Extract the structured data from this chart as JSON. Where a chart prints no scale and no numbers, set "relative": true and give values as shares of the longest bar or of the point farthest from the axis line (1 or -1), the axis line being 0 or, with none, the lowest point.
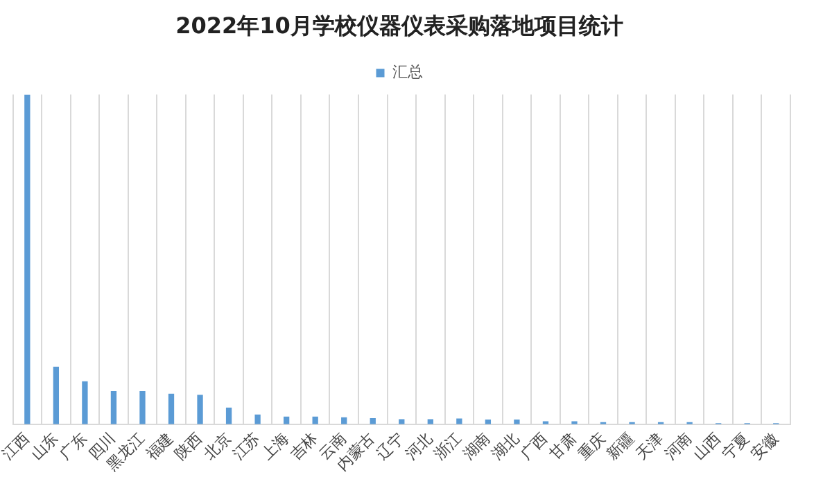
{
  "chart_data": {
    "type": "bar",
    "title": "2022年10月学校仪器仪表采购落地项目统计",
    "relative": true,
    "grid": "x",
    "legend": "top",
    "categories": [
      "江西",
      "山东",
      "广东",
      "四川",
      "黑龙江",
      "福建",
      "陕西",
      "北京",
      "江苏",
      "上海",
      "吉林",
      "云南",
      "内蒙古",
      "辽宁",
      "河北",
      "浙江",
      "湖南",
      "湖北",
      "广西",
      "甘肃",
      "重庆",
      "新疆",
      "天津",
      "河南",
      "山西",
      "宁夏",
      "安徽"
    ],
    "series": [
      {
        "name": "汇总",
        "color": "#5b9bd5",
        "values": [
          1,
          0.174,
          0.13,
          0.1,
          0.1,
          0.092,
          0.089,
          0.05,
          0.029,
          0.023,
          0.023,
          0.021,
          0.018,
          0.015,
          0.015,
          0.017,
          0.014,
          0.014,
          0.009,
          0.009,
          0.006,
          0.006,
          0.006,
          0.006,
          0.003,
          0.003,
          0.003
        ]
      }
    ]
  }
}
